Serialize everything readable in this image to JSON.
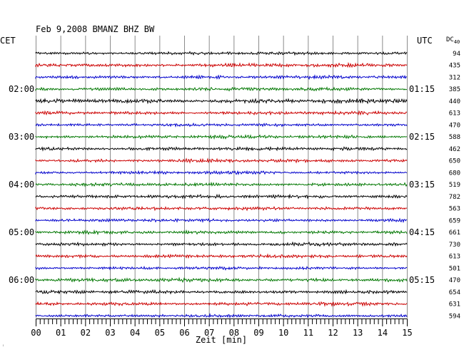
{
  "chart_data": {
    "type": "line",
    "title": "Feb 9,2008   BMANZ BHZ BW",
    "left_zone": "CET",
    "right_zone": "UTC",
    "dc_header": "DC",
    "dc_header_value": "40",
    "xlabel": "Zeit [min]",
    "x_ticks": [
      "00",
      "01",
      "02",
      "03",
      "04",
      "05",
      "06",
      "07",
      "08",
      "09",
      "10",
      "11",
      "12",
      "13",
      "14",
      "15"
    ],
    "x_range": [
      0,
      15
    ],
    "grid": true,
    "trace_colors": [
      "#000000",
      "#cc0000",
      "#0000cc",
      "#007700"
    ],
    "traces": [
      {
        "left_time": "",
        "right_time": "",
        "dc": "94",
        "amplitude": 0.9
      },
      {
        "left_time": "",
        "right_time": "",
        "dc": "435",
        "amplitude": 1.1
      },
      {
        "left_time": "",
        "right_time": "",
        "dc": "312",
        "amplitude": 1.0
      },
      {
        "left_time": "02:00",
        "right_time": "01:15",
        "dc": "385",
        "amplitude": 1.0
      },
      {
        "left_time": "",
        "right_time": "",
        "dc": "440",
        "amplitude": 1.3
      },
      {
        "left_time": "",
        "right_time": "",
        "dc": "613",
        "amplitude": 1.0
      },
      {
        "left_time": "",
        "right_time": "",
        "dc": "470",
        "amplitude": 0.9
      },
      {
        "left_time": "03:00",
        "right_time": "02:15",
        "dc": "588",
        "amplitude": 1.0
      },
      {
        "left_time": "",
        "right_time": "",
        "dc": "462",
        "amplitude": 1.0
      },
      {
        "left_time": "",
        "right_time": "",
        "dc": "650",
        "amplitude": 1.0
      },
      {
        "left_time": "",
        "right_time": "",
        "dc": "680",
        "amplitude": 0.9
      },
      {
        "left_time": "04:00",
        "right_time": "03:15",
        "dc": "519",
        "amplitude": 1.0
      },
      {
        "left_time": "",
        "right_time": "",
        "dc": "782",
        "amplitude": 1.0
      },
      {
        "left_time": "",
        "right_time": "",
        "dc": "563",
        "amplitude": 1.0
      },
      {
        "left_time": "",
        "right_time": "",
        "dc": "659",
        "amplitude": 0.9
      },
      {
        "left_time": "05:00",
        "right_time": "04:15",
        "dc": "661",
        "amplitude": 1.0
      },
      {
        "left_time": "",
        "right_time": "",
        "dc": "730",
        "amplitude": 1.0
      },
      {
        "left_time": "",
        "right_time": "",
        "dc": "613",
        "amplitude": 1.0
      },
      {
        "left_time": "",
        "right_time": "",
        "dc": "501",
        "amplitude": 0.9
      },
      {
        "left_time": "06:00",
        "right_time": "05:15",
        "dc": "470",
        "amplitude": 1.1
      },
      {
        "left_time": "",
        "right_time": "",
        "dc": "654",
        "amplitude": 1.0
      },
      {
        "left_time": "",
        "right_time": "",
        "dc": "631",
        "amplitude": 1.0
      },
      {
        "left_time": "",
        "right_time": "",
        "dc": "594",
        "amplitude": 0.9
      }
    ]
  },
  "footer_mark": "ꜟ"
}
